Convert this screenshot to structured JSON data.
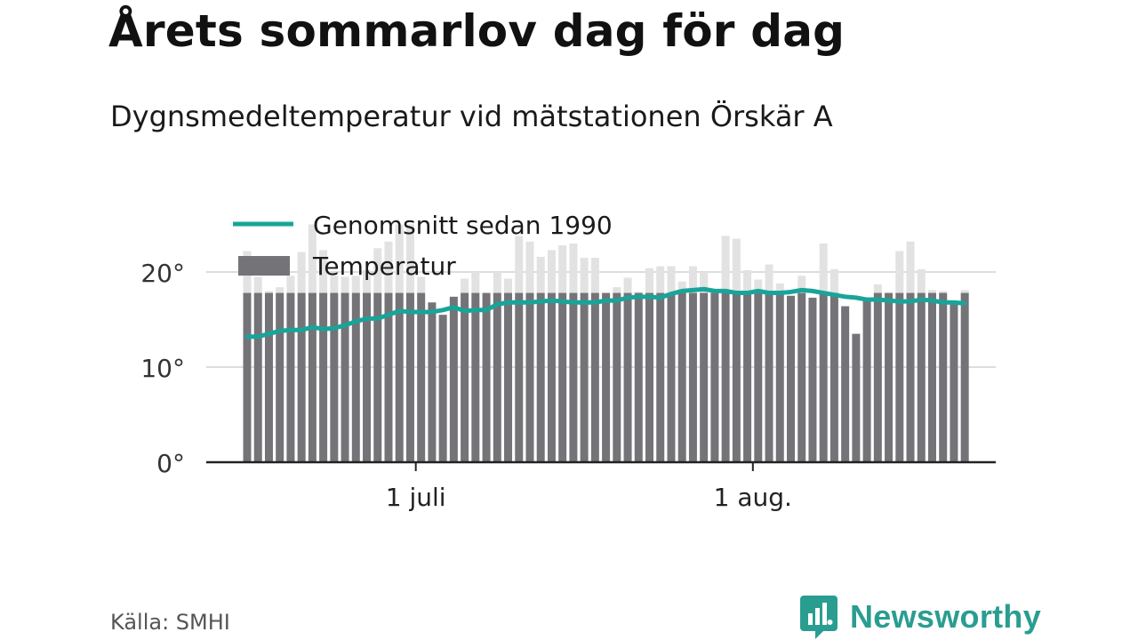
{
  "title": "Årets sommarlov dag för dag",
  "subtitle": "Dygnsmedeltemperatur vid mätstationen Örskär A",
  "source": "Källa: SMHI",
  "brand": {
    "name": "Newsworthy",
    "icon": "newsworthy-logo-icon",
    "color": "#2a9d91"
  },
  "colors": {
    "bar": "#747378",
    "bar_faded": "#e2e2e2",
    "line": "#18a499",
    "grid": "#dddddd",
    "axis": "#222222"
  },
  "chart_data": {
    "type": "bar",
    "x_axis": {
      "tick_labels": [
        "1 juli",
        "1 aug."
      ]
    },
    "y_axis": {
      "range": [
        0,
        25
      ],
      "tick_labels": [
        "0°",
        "10°",
        "20°"
      ],
      "tick_values": [
        0,
        10,
        20
      ]
    },
    "grid": true,
    "legend": {
      "placement": "top-left",
      "entries": [
        "Genomsnitt sedan 1990",
        "Temperatur"
      ]
    },
    "series": [
      {
        "name": "Temperatur",
        "kind": "bar",
        "values": [
          22.2,
          19.5,
          18.0,
          18.4,
          19.6,
          22.1,
          25.0,
          22.3,
          19.6,
          19.5,
          19.6,
          20.2,
          22.5,
          23.2,
          25.0,
          25.0,
          19.5,
          16.8,
          15.5,
          17.4,
          19.3,
          20.0,
          17.8,
          20.0,
          19.3,
          23.8,
          23.2,
          21.6,
          22.3,
          22.8,
          23.0,
          21.5,
          21.5,
          17.8,
          18.4,
          19.4,
          17.9,
          20.4,
          20.6,
          20.6,
          19.0,
          20.6,
          20.0,
          18.0,
          23.8,
          23.5,
          20.2,
          19.2,
          20.8,
          18.8,
          17.5,
          19.6,
          17.3,
          23.0,
          20.3,
          16.4,
          13.5,
          17.2,
          18.7,
          17.8,
          22.2,
          23.2,
          20.3,
          18.1,
          18.0,
          16.9,
          18.1
        ],
        "faded_above": 17.8
      },
      {
        "name": "Genomsnitt sedan 1990",
        "kind": "line",
        "values": [
          13.2,
          13.2,
          13.5,
          13.8,
          13.9,
          13.9,
          14.2,
          14.0,
          14.1,
          14.4,
          14.8,
          15.1,
          15.1,
          15.5,
          15.9,
          15.8,
          15.8,
          15.8,
          16.0,
          16.3,
          15.9,
          16.0,
          16.0,
          16.6,
          16.8,
          16.8,
          16.8,
          16.9,
          17.0,
          16.9,
          16.8,
          16.8,
          16.8,
          17.0,
          17.0,
          17.3,
          17.4,
          17.4,
          17.3,
          17.7,
          18.0,
          18.1,
          18.2,
          18.0,
          18.0,
          17.8,
          17.8,
          18.0,
          17.8,
          17.8,
          17.9,
          18.1,
          18.0,
          17.8,
          17.6,
          17.4,
          17.3,
          17.1,
          17.1,
          17.0,
          16.9,
          16.9,
          17.1,
          17.0,
          16.8,
          16.8,
          16.7
        ]
      }
    ]
  }
}
